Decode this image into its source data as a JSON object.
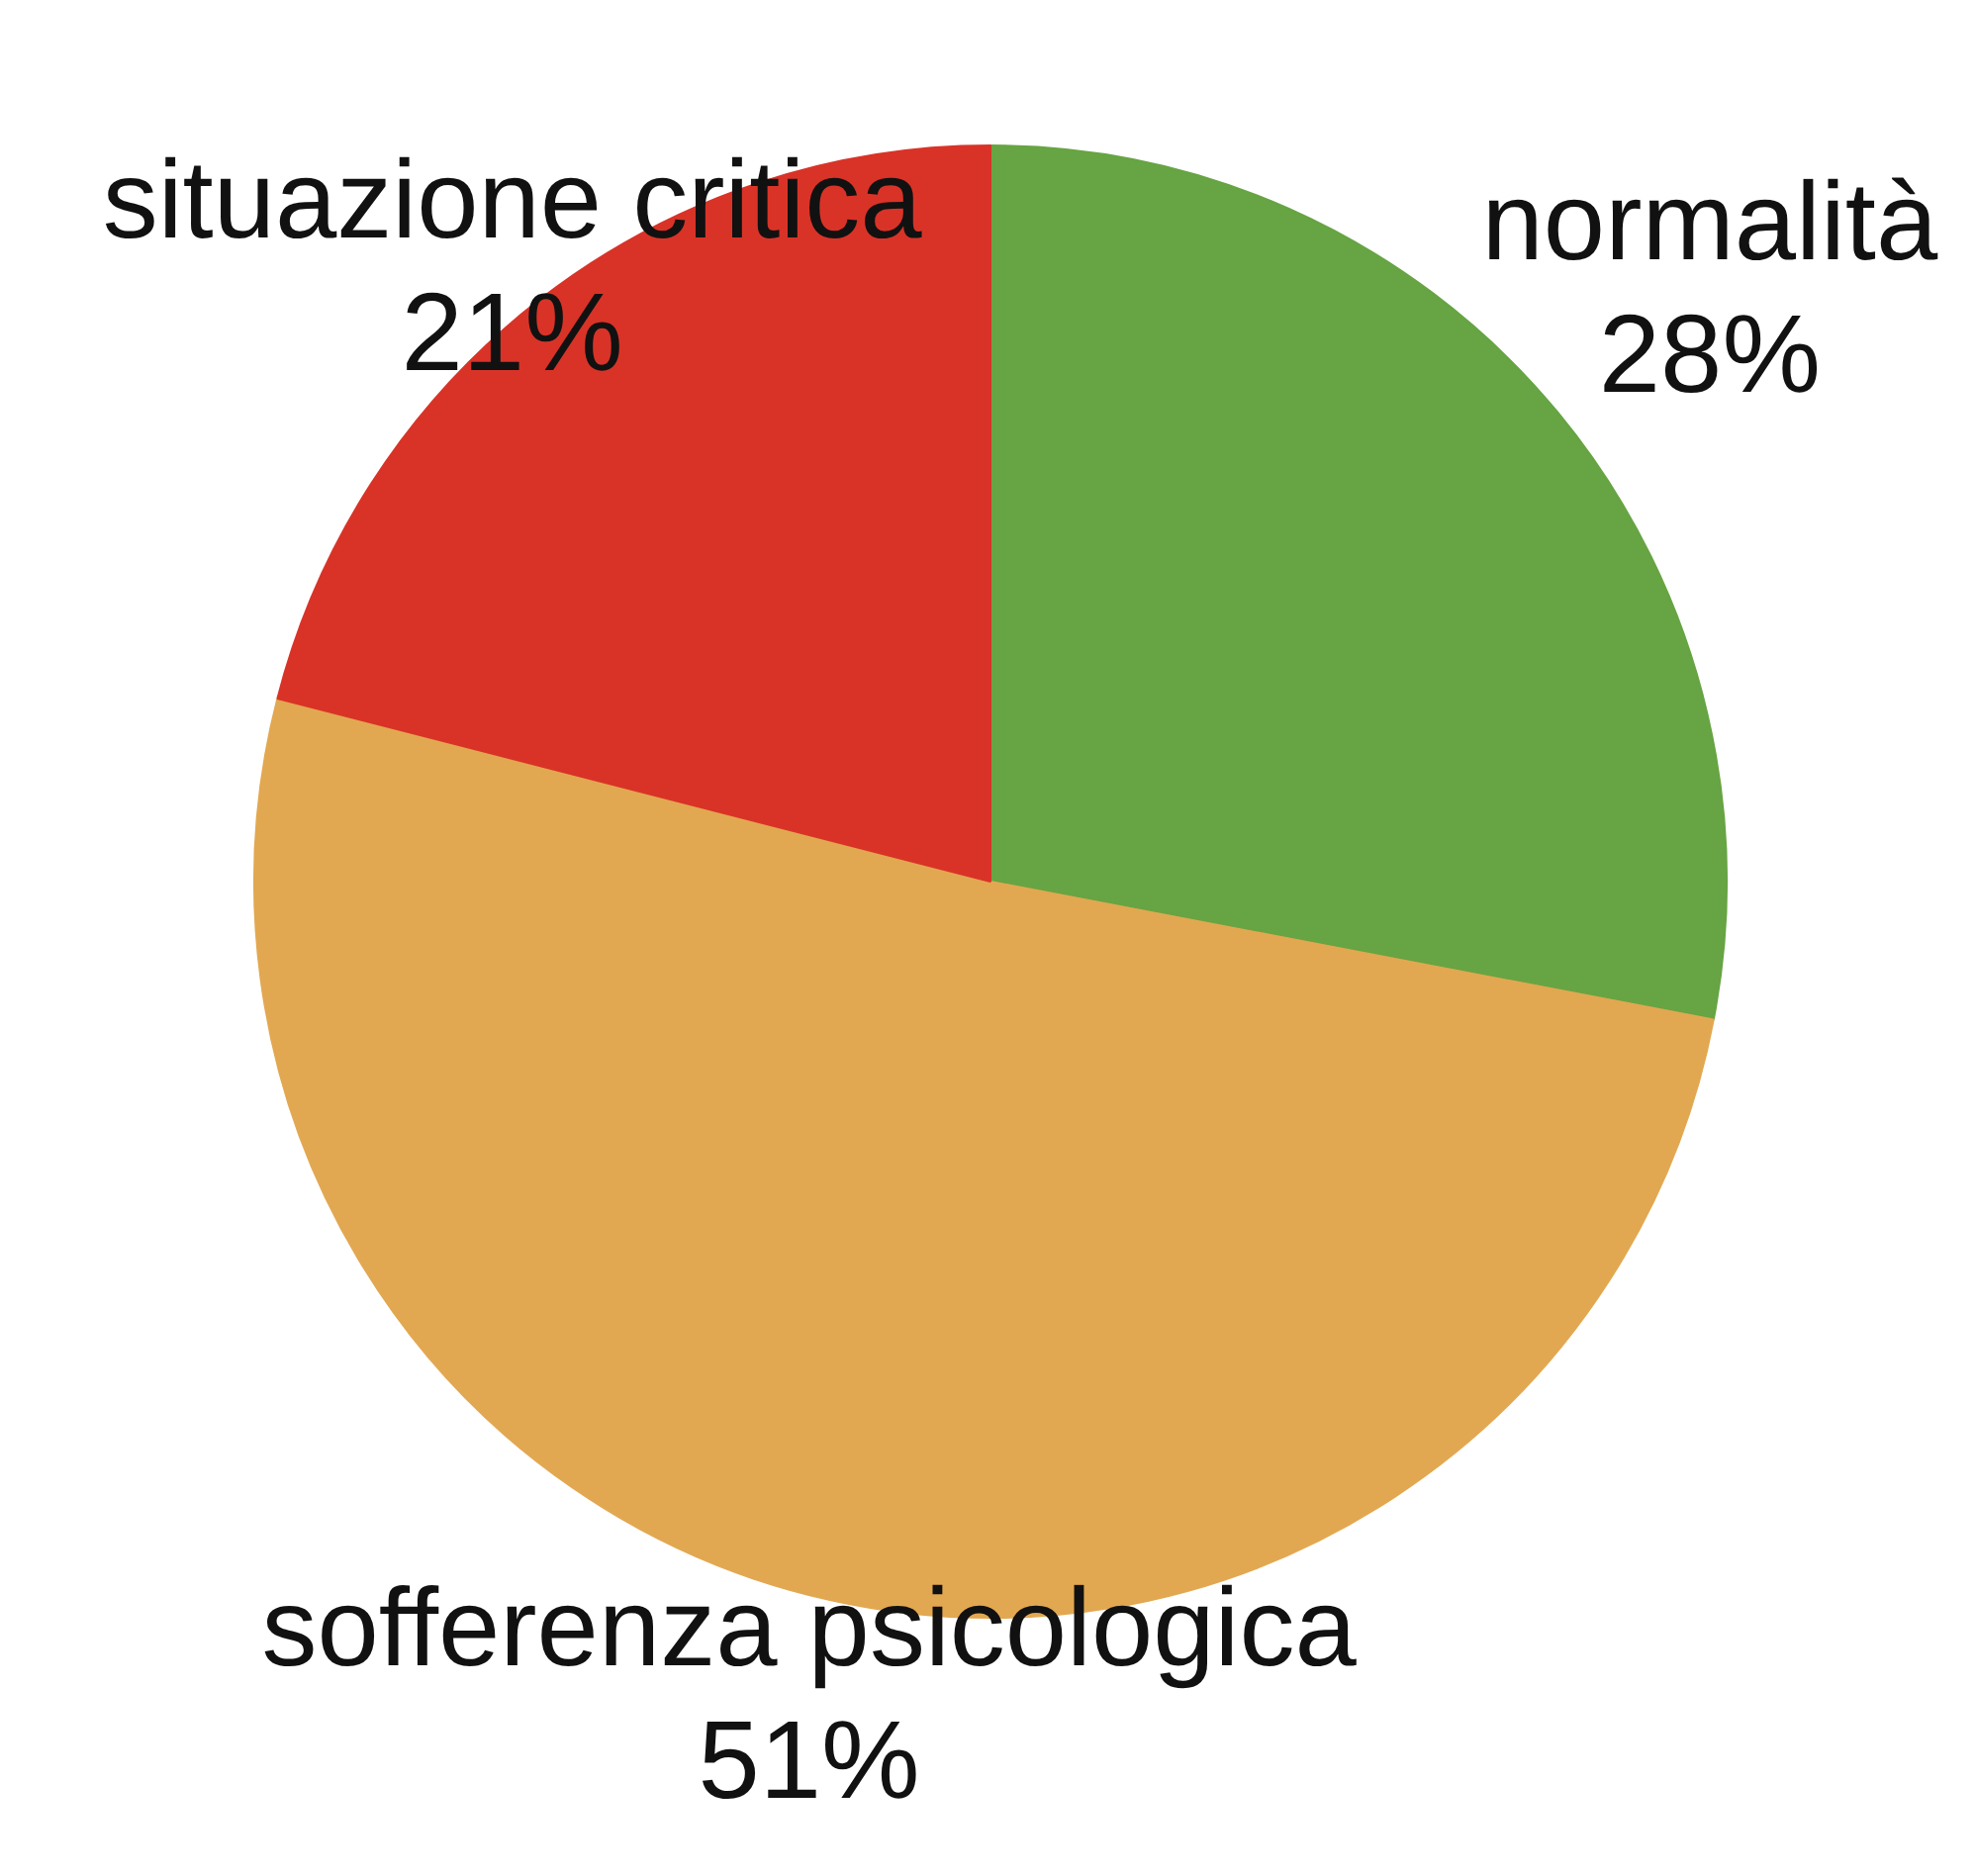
{
  "chart_data": {
    "type": "pie",
    "categories": [
      "normalità",
      "sofferenza psicologica",
      "situazione critica"
    ],
    "values": [
      28,
      51,
      21
    ],
    "colors": [
      "#67a443",
      "#e2a851",
      "#d93328"
    ],
    "value_labels": [
      "28%",
      "51%",
      "21%"
    ]
  }
}
